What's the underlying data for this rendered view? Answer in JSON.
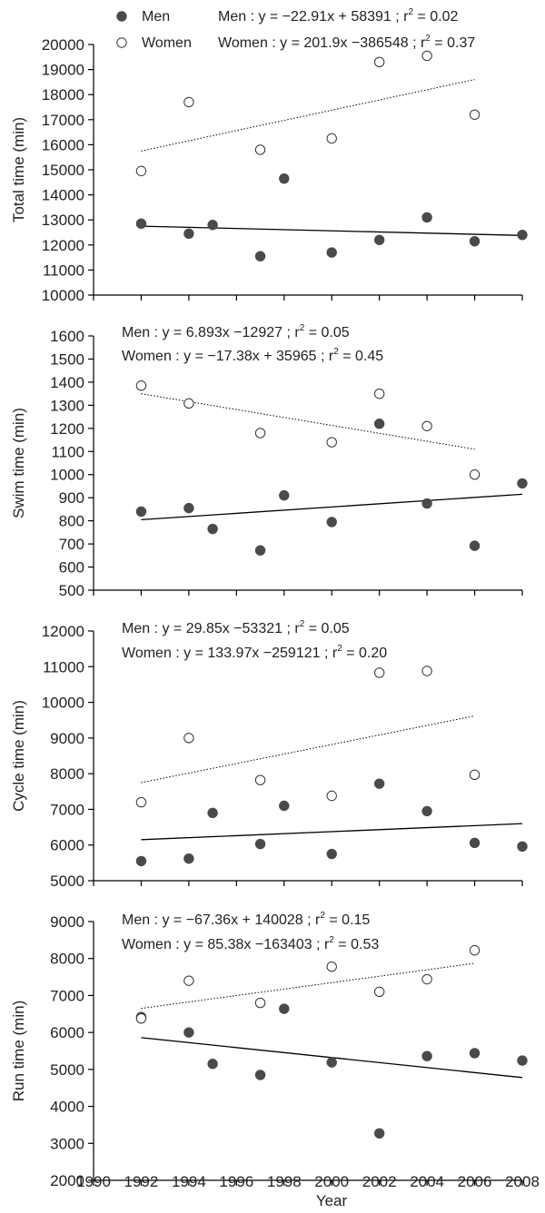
{
  "legend": {
    "men": "Men",
    "women": "Women",
    "men_eq": "Men : y = −22.91x + 58391 ; r",
    "men_r2": " = 0.02",
    "women_eq": "Women : y = 201.9x −386548 ; r",
    "women_r2": " = 0.37",
    "sup": "2"
  },
  "xlabel": "Year",
  "x_ticks": [
    "1990",
    "1992",
    "1994",
    "1996",
    "1998",
    "2000",
    "2002",
    "2004",
    "2006",
    "2008"
  ],
  "colors": {
    "men_marker": "#4a4a4a",
    "women_marker": "#ffffff",
    "line": "#000000"
  },
  "chart_data": [
    {
      "type": "scatter",
      "ylabel": "Total time (min)",
      "xlim": [
        1990,
        2008
      ],
      "ylim": [
        10000,
        20000
      ],
      "yticks": [
        10000,
        11000,
        12000,
        13000,
        14000,
        15000,
        16000,
        17000,
        18000,
        19000,
        20000
      ],
      "equations": [],
      "series": [
        {
          "name": "Men",
          "marker": "filled",
          "trend": "solid",
          "x": [
            1992,
            1994,
            1995,
            1997,
            1998,
            2000,
            2002,
            2004,
            2006,
            2008
          ],
          "y": [
            12850,
            12450,
            12800,
            11550,
            14650,
            11700,
            12200,
            13100,
            12150,
            12400
          ],
          "fit": [
            [
              1992,
              12750
            ],
            [
              2008,
              12380
            ]
          ]
        },
        {
          "name": "Women",
          "marker": "open",
          "trend": "dotted",
          "x": [
            1992,
            1994,
            1997,
            2000,
            2002,
            2004,
            2006
          ],
          "y": [
            14950,
            17700,
            15800,
            16250,
            19300,
            19550,
            17200
          ],
          "fit": [
            [
              1992,
              15750
            ],
            [
              2006,
              18600
            ]
          ]
        }
      ]
    },
    {
      "type": "scatter",
      "ylabel": "Swim time (min)",
      "xlim": [
        1990,
        2008
      ],
      "ylim": [
        500,
        1600
      ],
      "yticks": [
        500,
        600,
        700,
        800,
        900,
        1000,
        1100,
        1200,
        1300,
        1400,
        1500,
        1600
      ],
      "equations": [
        {
          "pre": "Men : y = 6.893x −12927 ; r",
          "sup": "2",
          "post": " = 0.05"
        },
        {
          "pre": "Women : y = −17.38x + 35965 ; r",
          "sup": "2",
          "post": " = 0.45"
        }
      ],
      "series": [
        {
          "name": "Men",
          "marker": "filled",
          "trend": "solid",
          "x": [
            1992,
            1994,
            1995,
            1997,
            1998,
            2000,
            2002,
            2004,
            2006,
            2008
          ],
          "y": [
            840,
            855,
            765,
            672,
            910,
            795,
            1220,
            875,
            692,
            962
          ],
          "fit": [
            [
              1992,
              805
            ],
            [
              2008,
              915
            ]
          ]
        },
        {
          "name": "Women",
          "marker": "open",
          "trend": "dotted",
          "x": [
            1992,
            1994,
            1997,
            2000,
            2002,
            2004,
            2006
          ],
          "y": [
            1385,
            1308,
            1180,
            1140,
            1350,
            1210,
            1000
          ],
          "fit": [
            [
              1992,
              1350
            ],
            [
              2006,
              1110
            ]
          ]
        }
      ]
    },
    {
      "type": "scatter",
      "ylabel": "Cycle time (min)",
      "xlim": [
        1990,
        2008
      ],
      "ylim": [
        5000,
        12000
      ],
      "yticks": [
        5000,
        6000,
        7000,
        8000,
        9000,
        10000,
        11000,
        12000
      ],
      "equations": [
        {
          "pre": "Men : y = 29.85x −53321 ; r",
          "sup": "2",
          "post": " = 0.05"
        },
        {
          "pre": "Women : y = 133.97x −259121 ; r",
          "sup": "2",
          "post": " = 0.20"
        }
      ],
      "series": [
        {
          "name": "Men",
          "marker": "filled",
          "trend": "solid",
          "x": [
            1992,
            1994,
            1995,
            1997,
            1998,
            2000,
            2002,
            2004,
            2006,
            2008
          ],
          "y": [
            5550,
            5620,
            6900,
            6030,
            7100,
            5750,
            7720,
            6950,
            6060,
            5960
          ],
          "fit": [
            [
              1992,
              6150
            ],
            [
              2008,
              6600
            ]
          ]
        },
        {
          "name": "Women",
          "marker": "open",
          "trend": "dotted",
          "x": [
            1992,
            1994,
            1997,
            2000,
            2002,
            2004,
            2006
          ],
          "y": [
            7200,
            9000,
            7820,
            7380,
            10830,
            10880,
            7970
          ],
          "fit": [
            [
              1992,
              7750
            ],
            [
              2006,
              9620
            ]
          ]
        }
      ]
    },
    {
      "type": "scatter",
      "ylabel": "Run time (min)",
      "xlim": [
        1990,
        2008
      ],
      "ylim": [
        2000,
        9000
      ],
      "yticks": [
        2000,
        3000,
        4000,
        5000,
        6000,
        7000,
        8000,
        9000
      ],
      "equations": [
        {
          "pre": "Men : y = −67.36x + 140028 ; r",
          "sup": "2",
          "post": " = 0.15"
        },
        {
          "pre": "Women : y = 85.38x −163403 ; r",
          "sup": "2",
          "post": " = 0.53"
        }
      ],
      "series": [
        {
          "name": "Men",
          "marker": "filled",
          "trend": "solid",
          "x": [
            1992,
            1994,
            1995,
            1997,
            1998,
            2000,
            2002,
            2004,
            2006,
            2008
          ],
          "y": [
            6420,
            6000,
            5150,
            4850,
            6640,
            5190,
            3270,
            5360,
            5440,
            5240
          ],
          "fit": [
            [
              1992,
              5860
            ],
            [
              2008,
              4780
            ]
          ]
        },
        {
          "name": "Women",
          "marker": "open",
          "trend": "dotted",
          "x": [
            1992,
            1994,
            1997,
            2000,
            2002,
            2004,
            2006
          ],
          "y": [
            6380,
            7400,
            6800,
            7780,
            7100,
            7440,
            8220
          ],
          "fit": [
            [
              1992,
              6650
            ],
            [
              2006,
              7870
            ]
          ]
        }
      ]
    }
  ]
}
